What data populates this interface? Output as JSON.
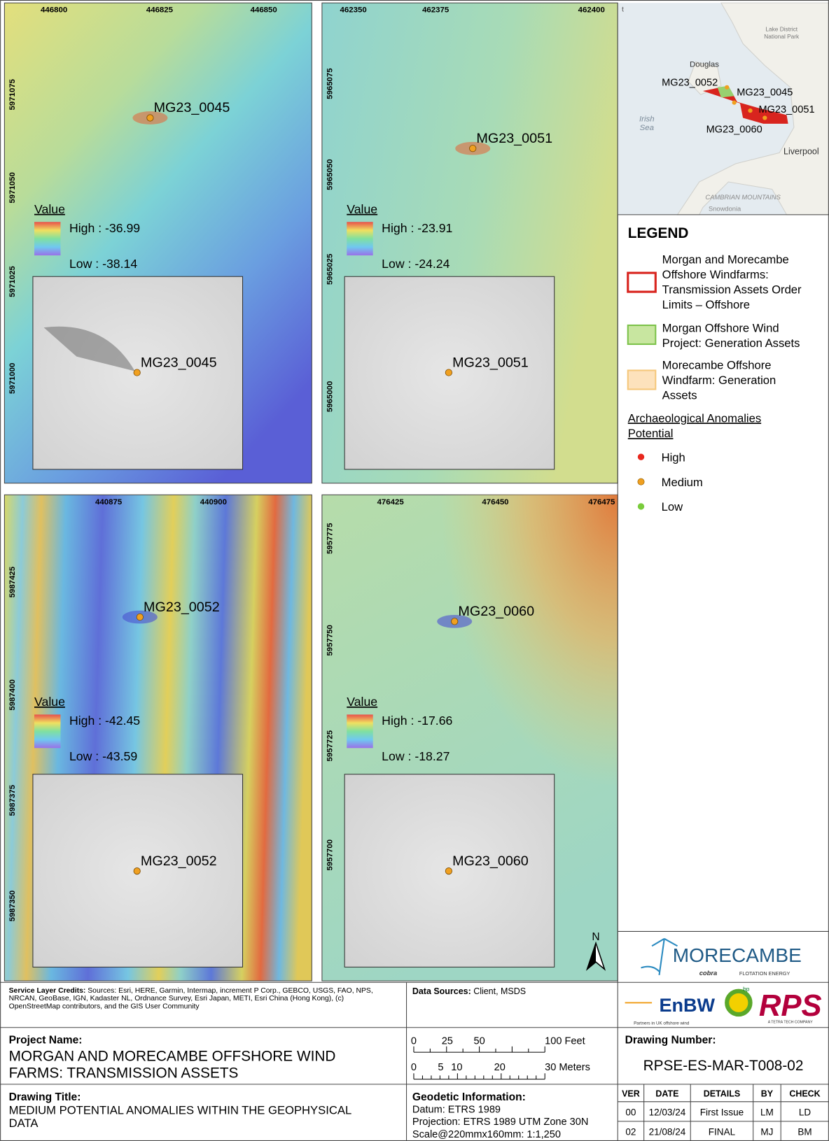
{
  "maps": [
    {
      "x_ticks": [
        446800,
        446825,
        446850
      ],
      "y_ticks": [
        5971075,
        5971050,
        5971025,
        5971000
      ],
      "label": "MG23_0045",
      "legend_title": "Value",
      "high": "High : -36.99",
      "low": "Low : -38.14",
      "inset_label": "MG23_0045"
    },
    {
      "x_ticks": [
        462350,
        462375,
        462400
      ],
      "y_ticks": [
        5965075,
        5965050,
        5965025,
        5965000
      ],
      "label": "MG23_0051",
      "legend_title": "Value",
      "high": "High : -23.91",
      "low": "Low : -24.24",
      "inset_label": "MG23_0051"
    },
    {
      "x_ticks": [
        440875,
        440900
      ],
      "y_ticks": [
        5987425,
        5987400,
        5987375,
        5987350
      ],
      "label": "MG23_0052",
      "legend_title": "Value",
      "high": "High : -42.45",
      "low": "Low : -43.59",
      "inset_label": "MG23_0052"
    },
    {
      "x_ticks": [
        476425,
        476450,
        476475
      ],
      "y_ticks": [
        5957775,
        5957750,
        5957725,
        5957700
      ],
      "label": "MG23_0060",
      "legend_title": "Value",
      "high": "High : -17.66",
      "low": "Low : -18.27",
      "inset_label": "MG23_0060"
    }
  ],
  "locator": {
    "labels": [
      "t",
      "Lake District",
      "National Park",
      "Douglas",
      "MG23_0052",
      "MG23_0045",
      "MG23_0051",
      "Irish",
      "Sea",
      "MG23_0060",
      "Liverpool",
      "CAMBRIAN MOUNTAINS",
      "Snowdonia"
    ]
  },
  "legend": {
    "title": "LEGEND",
    "items": [
      {
        "lines": [
          "Morgan and Morecambe",
          "Offshore Windfarms:",
          "Transmission Assets Order",
          "Limits – Offshore"
        ]
      },
      {
        "lines": [
          "Morgan Offshore Wind",
          "Project: Generation Assets"
        ]
      },
      {
        "lines": [
          "Morecambe Offshore",
          "Windfarm: Generation",
          "Assets"
        ]
      }
    ],
    "potential_title": [
      "Archaeological Anomalies",
      "Potential"
    ],
    "potential": [
      "High",
      "Medium",
      "Low"
    ]
  },
  "north": "N",
  "logos": {
    "morecambe": "MORECAMBE",
    "cobra": "cobra",
    "flotation": "FLOTATION ENERGY",
    "enbw": "EnBW",
    "bp": "bp",
    "partners": "Partners in UK offshore wind",
    "rps": "RPS",
    "tetra": "A TETRA TECH COMPANY"
  },
  "credits": {
    "label": "Service Layer Credits:",
    "lines": [
      "Sources: Esri, HERE, Garmin, Intermap, increment P Corp., GEBCO, USGS, FAO, NPS,",
      "NRCAN, GeoBase, IGN, Kadaster NL, Ordnance Survey, Esri Japan, METI, Esri China (Hong Kong), (c)",
      "OpenStreetMap contributors, and the GIS User Community"
    ]
  },
  "data_sources": {
    "label": "Data Sources:",
    "value": "Client, MSDS"
  },
  "project": {
    "label": "Project Name:",
    "lines": [
      "MORGAN AND MORECAMBE OFFSHORE WIND",
      "FARMS: TRANSMISSION ASSETS"
    ]
  },
  "scale": {
    "feet": [
      "0",
      "25",
      "50",
      "100 Feet"
    ],
    "meters": [
      "0",
      "5",
      "10",
      "20",
      "30 Meters"
    ]
  },
  "drawing_number": {
    "label": "Drawing Number:",
    "value": "RPSE-ES-MAR-T008-02"
  },
  "drawing_title": {
    "label": "Drawing Title:",
    "lines": [
      "MEDIUM POTENTIAL ANOMALIES WITHIN THE GEOPHYSICAL",
      "DATA"
    ]
  },
  "geodetic": {
    "label": "Geodetic Information:",
    "lines": [
      "Datum: ETRS 1989",
      "Projection: ETRS 1989 UTM Zone 30N",
      "Scale@220mmx160mm: 1:1,250"
    ]
  },
  "revisions": {
    "headers": [
      "VER",
      "DATE",
      "DETAILS",
      "BY",
      "CHECK"
    ],
    "rows": [
      [
        "00",
        "12/03/24",
        "First Issue",
        "LM",
        "LD"
      ],
      [
        "02",
        "21/08/24",
        "FINAL",
        "MJ",
        "BM"
      ]
    ]
  }
}
